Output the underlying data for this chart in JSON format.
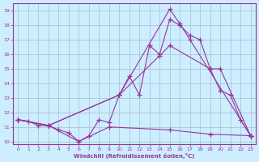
{
  "xlabel": "Windchill (Refroidissement éolien,°C)",
  "bg_color": "#cceeff",
  "grid_color": "#aabbcc",
  "line_color": "#993399",
  "xlim": [
    -0.5,
    23.5
  ],
  "ylim": [
    9.8,
    19.5
  ],
  "yticks": [
    10,
    11,
    12,
    13,
    14,
    15,
    16,
    17,
    18,
    19
  ],
  "xticks": [
    0,
    1,
    2,
    3,
    4,
    5,
    6,
    7,
    8,
    9,
    10,
    11,
    12,
    13,
    14,
    15,
    16,
    17,
    18,
    19,
    20,
    21,
    22,
    23
  ],
  "series": [
    {
      "x": [
        0,
        1,
        2,
        3,
        4,
        5,
        6,
        7,
        8,
        9,
        10,
        11,
        12,
        13,
        14,
        15,
        16,
        17,
        18,
        19,
        20,
        21,
        22,
        23
      ],
      "y": [
        11.5,
        11.4,
        11.1,
        11.1,
        10.8,
        10.6,
        10.0,
        10.4,
        11.5,
        11.3,
        13.2,
        14.5,
        13.2,
        16.6,
        16.0,
        18.4,
        18.0,
        17.3,
        17.0,
        15.0,
        13.5,
        13.2,
        11.5,
        10.4
      ]
    },
    {
      "x": [
        0,
        3,
        10,
        15,
        16,
        17,
        23
      ],
      "y": [
        11.5,
        11.1,
        13.2,
        19.1,
        18.1,
        17.0,
        10.4
      ]
    },
    {
      "x": [
        0,
        3,
        10,
        14,
        15,
        19,
        20,
        23
      ],
      "y": [
        11.5,
        11.1,
        13.2,
        15.9,
        16.6,
        15.0,
        15.0,
        10.4
      ]
    },
    {
      "x": [
        0,
        3,
        6,
        9,
        15,
        19,
        23
      ],
      "y": [
        11.5,
        11.1,
        10.0,
        11.0,
        10.8,
        10.5,
        10.4
      ]
    }
  ]
}
